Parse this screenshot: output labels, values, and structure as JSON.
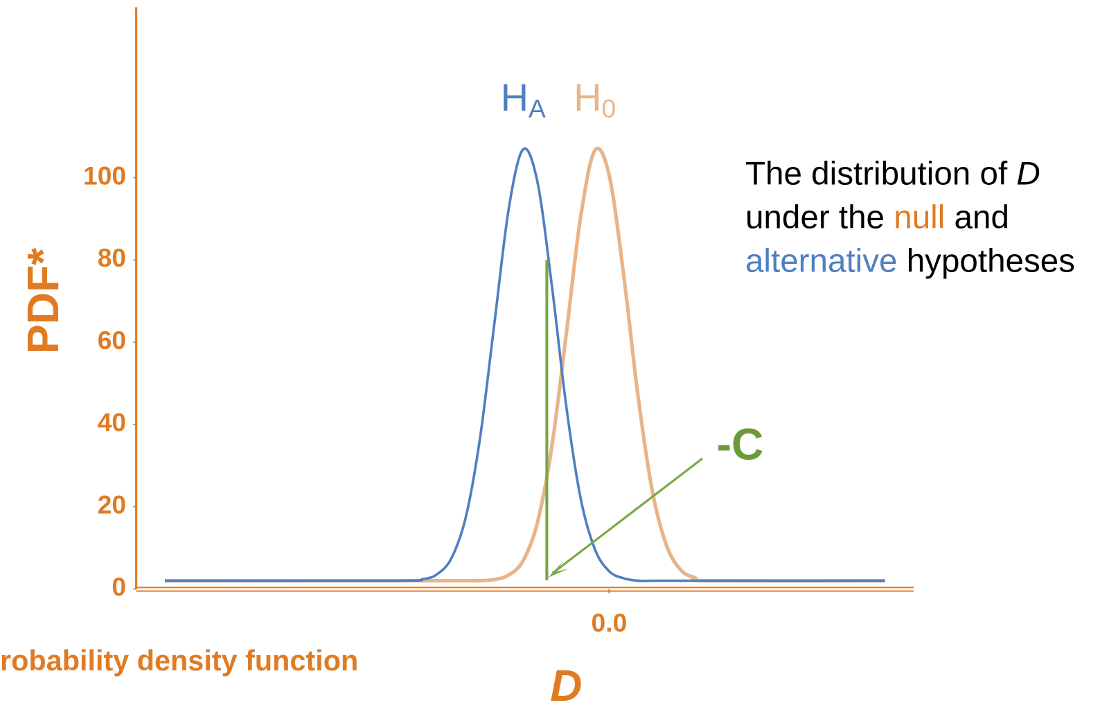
{
  "chart_data": {
    "type": "line",
    "x": [
      -6.2,
      -3,
      -2.6,
      -2.4,
      -2.2,
      -2.0,
      -1.8,
      -1.6,
      -1.4,
      -1.2,
      -1.0,
      -0.8,
      -0.6,
      -0.4,
      -0.2,
      0,
      0.2,
      0.4,
      0.6,
      0.8,
      1.0,
      1.2,
      1.4,
      3.85
    ],
    "series": [
      {
        "name": "H",
        "subscript": "A",
        "color": "#4f7fbf",
        "values": [
          2,
          2,
          2.4,
          3.6,
          7.5,
          17.5,
          36.9,
          64.8,
          92.6,
          106.9,
          98.9,
          73.8,
          44.6,
          22.2,
          9.7,
          4.3,
          2.6,
          2,
          2,
          2,
          2,
          2,
          2,
          2
        ]
      },
      {
        "name": "H",
        "subscript": "0",
        "color": "#e8b48a",
        "values": [
          2,
          2,
          2,
          2,
          2,
          2,
          2,
          2.3,
          3.4,
          6.9,
          16.2,
          34.6,
          61.8,
          90.2,
          106.6,
          100.6,
          76.7,
          47.3,
          24,
          10.6,
          4.6,
          2.7,
          2,
          2
        ]
      }
    ],
    "xlim": [
      -6.6,
      4.25
    ],
    "xticks": [
      {
        "value": 0,
        "label": "0.0"
      }
    ],
    "ylim": [
      0,
      100
    ],
    "yticks": [
      0,
      20,
      40,
      60,
      80,
      100
    ],
    "xlabel": "D",
    "ylabel": "PDF*",
    "footnote": "robability density function",
    "axis_color": "#e07b24",
    "threshold": {
      "label": "-C",
      "x": -0.87,
      "y": 80,
      "color": "#77a844"
    },
    "note": [
      [
        {
          "text": "The distribution of ",
          "color": "#000000"
        },
        {
          "text": "D",
          "color": "#000000",
          "italic": true
        }
      ],
      [
        {
          "text": "under the ",
          "color": "#000000"
        },
        {
          "text": "null",
          "color": "#e07b24"
        },
        {
          "text": " and",
          "color": "#000000"
        }
      ],
      [
        {
          "text": "alternative",
          "color": "#4f7fbf"
        },
        {
          "text": " hypotheses",
          "color": "#000000"
        }
      ]
    ]
  }
}
